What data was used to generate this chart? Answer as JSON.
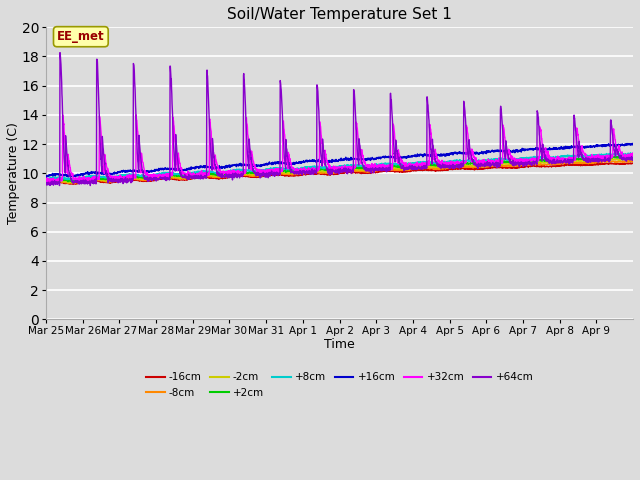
{
  "title": "Soil/Water Temperature Set 1",
  "xlabel": "Time",
  "ylabel": "Temperature (C)",
  "ylim": [
    0,
    20
  ],
  "xlim": [
    0,
    16
  ],
  "bg_color": "#dcdcdc",
  "grid_color": "#ffffff",
  "x_tick_labels": [
    "Mar 25",
    "Mar 26",
    "Mar 27",
    "Mar 28",
    "Mar 29",
    "Mar 30",
    "Mar 31",
    "Apr 1",
    "Apr 2",
    "Apr 3",
    "Apr 4",
    "Apr 5",
    "Apr 6",
    "Apr 7",
    "Apr 8",
    "Apr 9"
  ],
  "series": {
    "-16cm": {
      "color": "#cc0000"
    },
    "-8cm": {
      "color": "#ff8800"
    },
    "-2cm": {
      "color": "#cccc00"
    },
    "+2cm": {
      "color": "#00cc00"
    },
    "+8cm": {
      "color": "#00cccc"
    },
    "+16cm": {
      "color": "#0000cc"
    },
    "+32cm": {
      "color": "#ff00ff"
    },
    "+64cm": {
      "color": "#8800cc"
    }
  },
  "annotation_text": "EE_met"
}
